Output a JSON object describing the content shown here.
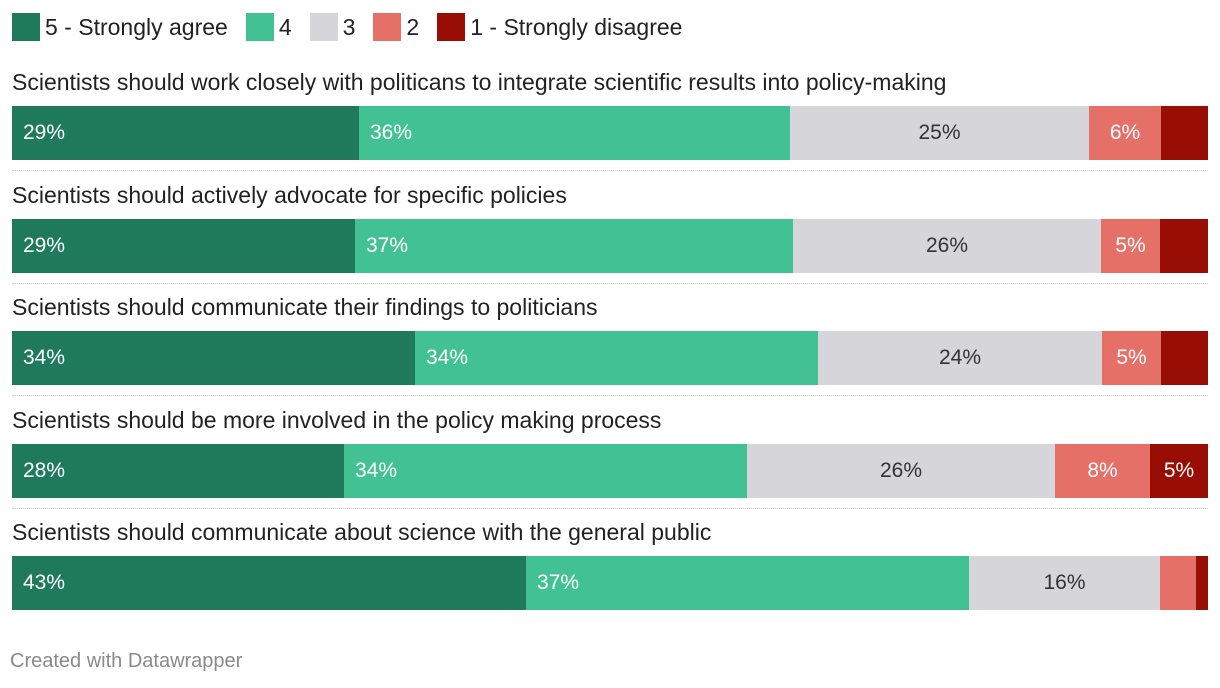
{
  "chart_data": {
    "type": "bar",
    "orientation": "horizontal",
    "stacked": true,
    "normalized": true,
    "legend_position": "top-left",
    "categories": [
      "Scientists should work closely with politicans to integrate scientific results into policy-making",
      "Scientists should actively advocate for specific policies",
      "Scientists should communicate their findings to politicians",
      "Scientists should be more involved in the policy making process",
      "Scientists should communicate about science with the general public"
    ],
    "series": [
      {
        "name": "5 - Strongly agree",
        "color": "#1f7a5c",
        "text_color": "#ffffff",
        "values": [
          29,
          29,
          34,
          28,
          43
        ],
        "labels": [
          "29%",
          "29%",
          "34%",
          "28%",
          "43%"
        ]
      },
      {
        "name": "4",
        "color": "#42c195",
        "text_color": "#ffffff",
        "values": [
          36,
          37,
          34,
          34,
          37
        ],
        "labels": [
          "36%",
          "37%",
          "34%",
          "34%",
          "37%"
        ]
      },
      {
        "name": "3",
        "color": "#d5d5da",
        "text_color": "#333333",
        "values": [
          25,
          26,
          24,
          26,
          16
        ],
        "labels": [
          "25%",
          "26%",
          "24%",
          "26%",
          "16%"
        ]
      },
      {
        "name": "2",
        "color": "#e57068",
        "text_color": "#ffffff",
        "values": [
          6,
          5,
          5,
          8,
          3
        ],
        "labels": [
          "6%",
          "5%",
          "5%",
          "8%",
          ""
        ]
      },
      {
        "name": "1 - Strongly disagree",
        "color": "#990e04",
        "text_color": "#ffffff",
        "values": [
          4,
          4,
          4,
          5,
          1
        ],
        "labels": [
          "",
          "",
          "",
          "5%",
          ""
        ]
      }
    ],
    "title": "",
    "xlabel": "",
    "ylabel": ""
  },
  "footer": {
    "credit": "Created with Datawrapper"
  }
}
